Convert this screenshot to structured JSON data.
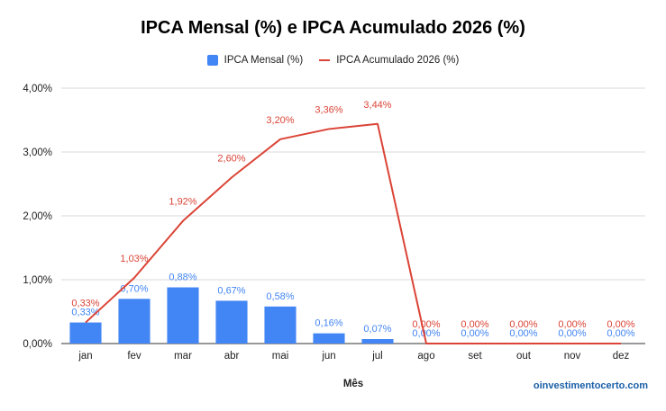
{
  "chart_data": {
    "type": "bar",
    "title": "IPCA Mensal (%) e IPCA Acumulado 2026 (%)",
    "xlabel": "Mês",
    "ylabel": "",
    "ylim": [
      0,
      4
    ],
    "yticks": [
      0,
      1,
      2,
      3,
      4
    ],
    "ytick_labels": [
      "0,00%",
      "1,00%",
      "2,00%",
      "3,00%",
      "4,00%"
    ],
    "grid": true,
    "legend_position": "top",
    "categories": [
      "jan",
      "fev",
      "mar",
      "abr",
      "mai",
      "jun",
      "jul",
      "ago",
      "set",
      "out",
      "nov",
      "dez"
    ],
    "series": [
      {
        "name": "IPCA Mensal (%)",
        "type": "bar",
        "color": "#4285f4",
        "values": [
          0.33,
          0.7,
          0.88,
          0.67,
          0.58,
          0.16,
          0.07,
          0,
          0,
          0,
          0,
          0
        ],
        "labels": [
          "0,33%",
          "0,70%",
          "0,88%",
          "0,67%",
          "0,58%",
          "0,16%",
          "0,07%",
          "0,00%",
          "0,00%",
          "0,00%",
          "0,00%",
          "0,00%"
        ]
      },
      {
        "name": "IPCA Acumulado 2026 (%)",
        "type": "line",
        "color": "#db4437",
        "values": [
          0.33,
          1.03,
          1.92,
          2.6,
          3.2,
          3.36,
          3.44,
          0,
          0,
          0,
          0,
          0
        ],
        "labels": [
          "0,33%",
          "1,03%",
          "1,92%",
          "2,60%",
          "3,20%",
          "3,36%",
          "3,44%",
          "0,00%",
          "0,00%",
          "0,00%",
          "0,00%",
          "0,00%"
        ]
      }
    ]
  },
  "watermark": "oinvestimentocerto.com"
}
